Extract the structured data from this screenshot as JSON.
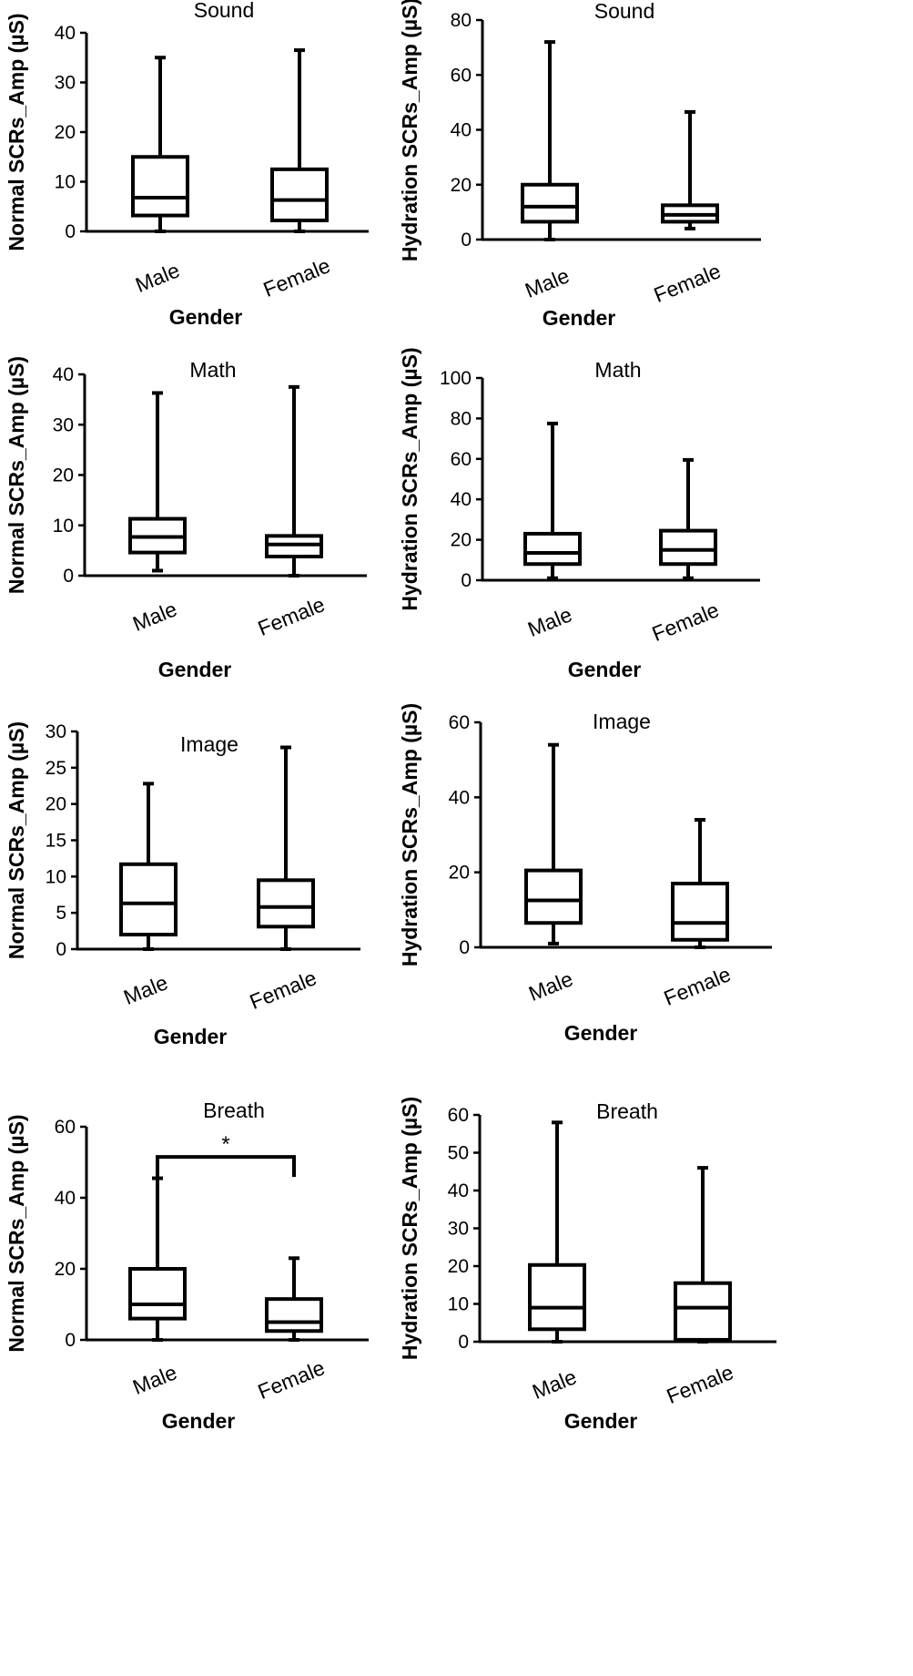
{
  "chart_data": [
    {
      "type": "boxplot",
      "title": "Sound",
      "xlabel": "Gender",
      "ylabel": "Normal SCRs_Amp  (µS)",
      "ylim": [
        0,
        40
      ],
      "yticks": [
        0,
        10,
        20,
        30,
        40
      ],
      "categories": [
        "Male",
        "Female"
      ],
      "boxes": [
        {
          "min": 0,
          "q1": 3.2,
          "median": 6.8,
          "q3": 15,
          "max": 35
        },
        {
          "min": 0,
          "q1": 2.2,
          "median": 6.3,
          "q3": 12.5,
          "max": 36.5
        }
      ]
    },
    {
      "type": "boxplot",
      "title": "Sound",
      "xlabel": "Gender",
      "ylabel": "Hydration SCRs_Amp  (µS)",
      "ylim": [
        0,
        80
      ],
      "yticks": [
        0,
        20,
        40,
        60,
        80
      ],
      "categories": [
        "Male",
        "Female"
      ],
      "boxes": [
        {
          "min": 0,
          "q1": 6.5,
          "median": 12,
          "q3": 20,
          "max": 72
        },
        {
          "min": 4,
          "q1": 6.5,
          "median": 9,
          "q3": 12.5,
          "max": 46.5
        }
      ]
    },
    {
      "type": "boxplot",
      "title": "Math",
      "xlabel": "Gender",
      "ylabel": "Normal SCRs_Amp  (µS)",
      "ylim": [
        0,
        40
      ],
      "yticks": [
        0,
        10,
        20,
        30,
        40
      ],
      "categories": [
        "Male",
        "Female"
      ],
      "boxes": [
        {
          "min": 1,
          "q1": 4.6,
          "median": 7.7,
          "q3": 11.3,
          "max": 36.3
        },
        {
          "min": 0,
          "q1": 3.8,
          "median": 6.2,
          "q3": 7.9,
          "max": 37.5
        }
      ]
    },
    {
      "type": "boxplot",
      "title": "Math",
      "xlabel": "Gender",
      "ylabel": "Hydration SCRs_Amp  (µS)",
      "ylim": [
        0,
        100
      ],
      "yticks": [
        0,
        20,
        40,
        60,
        80,
        100
      ],
      "categories": [
        "Male",
        "Female"
      ],
      "boxes": [
        {
          "min": 1,
          "q1": 8,
          "median": 13.5,
          "q3": 23,
          "max": 77.5
        },
        {
          "min": 1,
          "q1": 8,
          "median": 15,
          "q3": 24.5,
          "max": 59.5
        }
      ]
    },
    {
      "type": "boxplot",
      "title": "Image",
      "xlabel": "Gender",
      "ylabel": "Normal SCRs_Amp  (µS)",
      "ylim": [
        0,
        30
      ],
      "yticks": [
        0,
        5,
        10,
        15,
        20,
        25,
        30
      ],
      "categories": [
        "Male",
        "Female"
      ],
      "boxes": [
        {
          "min": 0,
          "q1": 2,
          "median": 6.3,
          "q3": 11.7,
          "max": 22.8
        },
        {
          "min": 0,
          "q1": 3.1,
          "median": 5.8,
          "q3": 9.5,
          "max": 27.8
        }
      ]
    },
    {
      "type": "boxplot",
      "title": "Image",
      "xlabel": "Gender",
      "ylabel": "Hydration SCRs_Amp  (µS)",
      "ylim": [
        0,
        60
      ],
      "yticks": [
        0,
        20,
        40,
        60
      ],
      "categories": [
        "Male",
        "Female"
      ],
      "boxes": [
        {
          "min": 1,
          "q1": 6.5,
          "median": 12.5,
          "q3": 20.5,
          "max": 54
        },
        {
          "min": 0,
          "q1": 2,
          "median": 6.5,
          "q3": 17,
          "max": 34
        }
      ]
    },
    {
      "type": "boxplot",
      "title": "Breath",
      "xlabel": "Gender",
      "ylabel": "Normal SCRs_Amp  (µS)",
      "ylim": [
        0,
        60
      ],
      "yticks": [
        0,
        20,
        40,
        60
      ],
      "categories": [
        "Male",
        "Female"
      ],
      "boxes": [
        {
          "min": 0,
          "q1": 6,
          "median": 10,
          "q3": 20,
          "max": 45.5
        },
        {
          "min": 0,
          "q1": 2.5,
          "median": 5,
          "q3": 11.5,
          "max": 23
        }
      ],
      "significance": {
        "label": "*",
        "level": 51.5
      }
    },
    {
      "type": "boxplot",
      "title": "Breath",
      "xlabel": "Gender",
      "ylabel": "Hydration SCRs_Amp  (µS)",
      "ylim": [
        0,
        60
      ],
      "yticks": [
        0,
        10,
        20,
        30,
        40,
        50,
        60
      ],
      "categories": [
        "Male",
        "Female"
      ],
      "boxes": [
        {
          "min": 0,
          "q1": 3.3,
          "median": 9,
          "q3": 20.3,
          "max": 58
        },
        {
          "min": 0,
          "q1": 0.5,
          "median": 9,
          "q3": 15.5,
          "max": 46
        }
      ]
    }
  ]
}
